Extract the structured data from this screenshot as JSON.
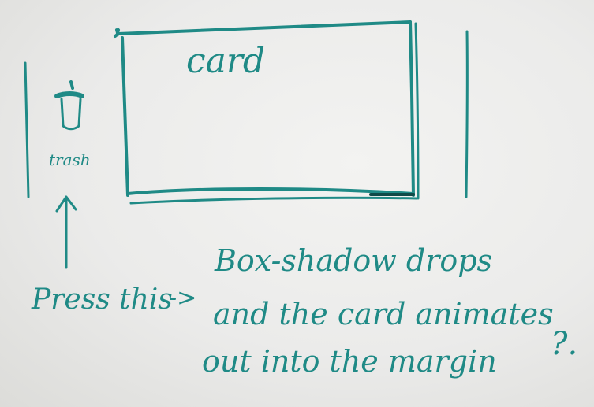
{
  "card": {
    "label": "card"
  },
  "trash": {
    "icon": "trash-icon",
    "label": "trash"
  },
  "annotation": {
    "press_label": "Press this",
    "arrow_text": "->",
    "line1": "Box-shadow drops",
    "line2": "and the card animates",
    "line3": "out into the margin",
    "question": "?."
  },
  "colors": {
    "ink": "#1f8a86",
    "paper": "#ececea"
  }
}
